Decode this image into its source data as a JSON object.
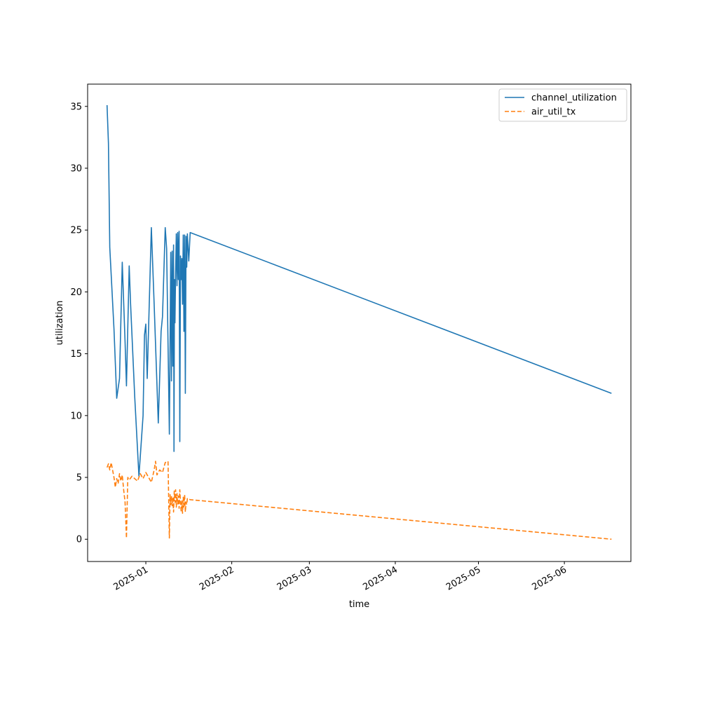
{
  "chart_data": {
    "type": "line",
    "title": "",
    "xlabel": "time",
    "ylabel": "utilization",
    "x_type": "date",
    "xlim": [
      "2024-12-11",
      "2025-06-25"
    ],
    "ylim": [
      -1.8,
      36.8
    ],
    "x_ticks": [
      "2025-01",
      "2025-02",
      "2025-03",
      "2025-04",
      "2025-05",
      "2025-06"
    ],
    "y_ticks": [
      0,
      5,
      10,
      15,
      20,
      25,
      30,
      35
    ],
    "grid": false,
    "legend_position": "top-right",
    "series": [
      {
        "name": "channel_utilization",
        "color": "#1f77b4",
        "style": "solid",
        "points": [
          [
            "2024-12-18T00:00",
            35.1
          ],
          [
            "2024-12-18T12:00",
            32.0
          ],
          [
            "2024-12-19T00:00",
            23.6
          ],
          [
            "2024-12-20T12:00",
            17.0
          ],
          [
            "2024-12-21T12:00",
            11.4
          ],
          [
            "2024-12-22T12:00",
            13.0
          ],
          [
            "2024-12-23T12:00",
            22.4
          ],
          [
            "2024-12-24T12:00",
            16.0
          ],
          [
            "2024-12-25T00:00",
            12.4
          ],
          [
            "2024-12-26T00:00",
            22.1
          ],
          [
            "2024-12-26T12:00",
            19.0
          ],
          [
            "2024-12-28T00:00",
            11.5
          ],
          [
            "2024-12-29T12:00",
            5.1
          ],
          [
            "2024-12-31T00:00",
            10.0
          ],
          [
            "2024-12-31T12:00",
            16.5
          ],
          [
            "2025-01-01T00:00",
            17.4
          ],
          [
            "2025-01-01T12:00",
            13.0
          ],
          [
            "2025-01-03T00:00",
            25.2
          ],
          [
            "2025-01-04T00:00",
            19.0
          ],
          [
            "2025-01-05T12:00",
            9.4
          ],
          [
            "2025-01-06T12:00",
            16.8
          ],
          [
            "2025-01-07T00:00",
            18.0
          ],
          [
            "2025-01-08T00:00",
            25.2
          ],
          [
            "2025-01-08T12:00",
            23.5
          ],
          [
            "2025-01-09T12:00",
            8.5
          ],
          [
            "2025-01-10T00:00",
            23.2
          ],
          [
            "2025-01-10T06:00",
            12.8
          ],
          [
            "2025-01-10T12:00",
            23.3
          ],
          [
            "2025-01-10T18:00",
            14.0
          ],
          [
            "2025-01-11T00:00",
            23.8
          ],
          [
            "2025-01-11T04:00",
            7.1
          ],
          [
            "2025-01-11T08:00",
            21.0
          ],
          [
            "2025-01-11T12:00",
            17.5
          ],
          [
            "2025-01-11T18:00",
            21.5
          ],
          [
            "2025-01-12T00:00",
            24.7
          ],
          [
            "2025-01-12T06:00",
            20.5
          ],
          [
            "2025-01-12T12:00",
            24.8
          ],
          [
            "2025-01-12T18:00",
            21.0
          ],
          [
            "2025-01-13T00:00",
            24.9
          ],
          [
            "2025-01-13T06:00",
            7.9
          ],
          [
            "2025-01-13T12:00",
            22.9
          ],
          [
            "2025-01-13T18:00",
            21.0
          ],
          [
            "2025-01-14T00:00",
            22.7
          ],
          [
            "2025-01-14T06:00",
            19.0
          ],
          [
            "2025-01-14T12:00",
            24.6
          ],
          [
            "2025-01-14T18:00",
            16.8
          ],
          [
            "2025-01-15T00:00",
            24.6
          ],
          [
            "2025-01-15T06:00",
            11.8
          ],
          [
            "2025-01-15T12:00",
            24.5
          ],
          [
            "2025-01-15T18:00",
            22.0
          ],
          [
            "2025-01-16T00:00",
            24.7
          ],
          [
            "2025-01-16T12:00",
            22.5
          ],
          [
            "2025-01-17T00:00",
            24.8
          ],
          [
            "2025-06-18T00:00",
            11.8
          ]
        ]
      },
      {
        "name": "air_util_tx",
        "color": "#ff7f0e",
        "style": "dashed",
        "points": [
          [
            "2024-12-18T00:00",
            5.8
          ],
          [
            "2024-12-18T12:00",
            6.1
          ],
          [
            "2024-12-19T00:00",
            5.6
          ],
          [
            "2024-12-19T12:00",
            6.2
          ],
          [
            "2024-12-20T12:00",
            5.0
          ],
          [
            "2024-12-21T00:00",
            4.2
          ],
          [
            "2024-12-21T12:00",
            4.9
          ],
          [
            "2024-12-22T00:00",
            4.5
          ],
          [
            "2024-12-22T12:00",
            5.3
          ],
          [
            "2024-12-23T00:00",
            4.7
          ],
          [
            "2024-12-23T12:00",
            5.2
          ],
          [
            "2024-12-24T00:00",
            4.0
          ],
          [
            "2024-12-24T12:00",
            3.0
          ],
          [
            "2024-12-25T00:00",
            0.1
          ],
          [
            "2024-12-25T12:00",
            5.0
          ],
          [
            "2024-12-26T00:00",
            4.8
          ],
          [
            "2024-12-27T00:00",
            5.1
          ],
          [
            "2024-12-28T00:00",
            4.9
          ],
          [
            "2024-12-29T00:00",
            4.7
          ],
          [
            "2024-12-30T00:00",
            5.3
          ],
          [
            "2024-12-31T00:00",
            4.9
          ],
          [
            "2025-01-01T00:00",
            5.4
          ],
          [
            "2025-01-02T00:00",
            5.0
          ],
          [
            "2025-01-03T00:00",
            4.6
          ],
          [
            "2025-01-04T00:00",
            5.6
          ],
          [
            "2025-01-04T12:00",
            6.3
          ],
          [
            "2025-01-05T00:00",
            5.2
          ],
          [
            "2025-01-06T00:00",
            5.6
          ],
          [
            "2025-01-07T00:00",
            5.4
          ],
          [
            "2025-01-08T00:00",
            6.2
          ],
          [
            "2025-01-09T00:00",
            6.3
          ],
          [
            "2025-01-09T12:00",
            0.1
          ],
          [
            "2025-01-09T18:00",
            3.6
          ],
          [
            "2025-01-10T00:00",
            2.8
          ],
          [
            "2025-01-10T06:00",
            3.5
          ],
          [
            "2025-01-10T12:00",
            2.7
          ],
          [
            "2025-01-10T18:00",
            3.4
          ],
          [
            "2025-01-11T00:00",
            2.2
          ],
          [
            "2025-01-11T06:00",
            3.9
          ],
          [
            "2025-01-11T12:00",
            3.0
          ],
          [
            "2025-01-11T18:00",
            4.0
          ],
          [
            "2025-01-12T00:00",
            2.6
          ],
          [
            "2025-01-12T06:00",
            3.7
          ],
          [
            "2025-01-12T12:00",
            2.8
          ],
          [
            "2025-01-12T18:00",
            3.5
          ],
          [
            "2025-01-13T00:00",
            2.5
          ],
          [
            "2025-01-13T06:00",
            4.0
          ],
          [
            "2025-01-13T12:00",
            3.0
          ],
          [
            "2025-01-13T18:00",
            2.2
          ],
          [
            "2025-01-14T00:00",
            3.1
          ],
          [
            "2025-01-14T06:00",
            2.1
          ],
          [
            "2025-01-14T12:00",
            3.4
          ],
          [
            "2025-01-14T18:00",
            2.5
          ],
          [
            "2025-01-15T00:00",
            3.6
          ],
          [
            "2025-01-15T06:00",
            2.2
          ],
          [
            "2025-01-15T12:00",
            3.0
          ],
          [
            "2025-01-15T18:00",
            2.8
          ],
          [
            "2025-01-16T00:00",
            3.3
          ],
          [
            "2025-01-17T00:00",
            3.2
          ],
          [
            "2025-06-18T00:00",
            0.0
          ]
        ]
      }
    ]
  }
}
